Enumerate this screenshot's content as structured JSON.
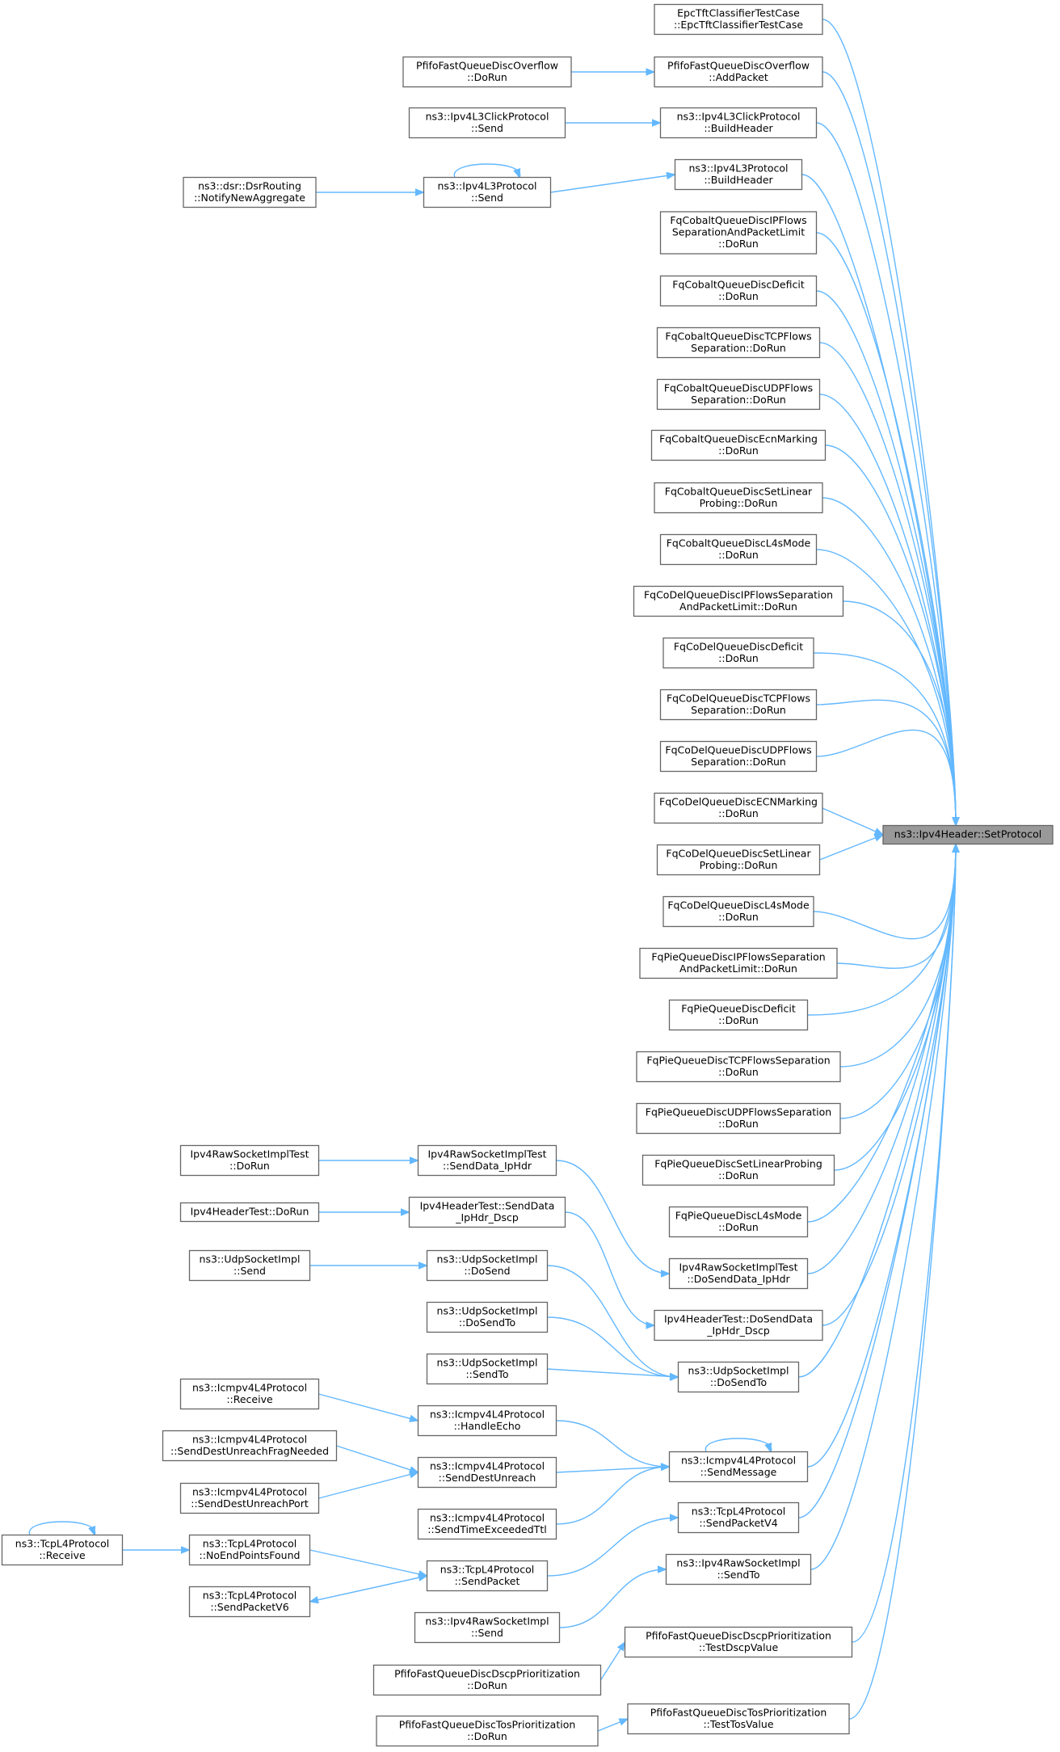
{
  "target": {
    "id": "target",
    "lines": [
      "ns3::Ipv4Header::SetProtocol"
    ]
  },
  "nodes": [
    {
      "id": "a1",
      "lines": [
        "EpcTftClassifierTestCase",
        "::EpcTftClassifierTestCase"
      ]
    },
    {
      "id": "a2",
      "lines": [
        "PfifoFastQueueDiscOverflow",
        "::AddPacket"
      ]
    },
    {
      "id": "a3",
      "lines": [
        "ns3::Ipv4L3ClickProtocol",
        "::BuildHeader"
      ]
    },
    {
      "id": "a4",
      "lines": [
        "ns3::Ipv4L3Protocol",
        "::BuildHeader"
      ]
    },
    {
      "id": "a5",
      "lines": [
        "FqCobaltQueueDiscIPFlows",
        "SeparationAndPacketLimit",
        "::DoRun"
      ]
    },
    {
      "id": "a6",
      "lines": [
        "FqCobaltQueueDiscDeficit",
        "::DoRun"
      ]
    },
    {
      "id": "a7",
      "lines": [
        "FqCobaltQueueDiscTCPFlows",
        "Separation::DoRun"
      ]
    },
    {
      "id": "a8",
      "lines": [
        "FqCobaltQueueDiscUDPFlows",
        "Separation::DoRun"
      ]
    },
    {
      "id": "a9",
      "lines": [
        "FqCobaltQueueDiscEcnMarking",
        "::DoRun"
      ]
    },
    {
      "id": "a10",
      "lines": [
        "FqCobaltQueueDiscSetLinear",
        "Probing::DoRun"
      ]
    },
    {
      "id": "a11",
      "lines": [
        "FqCobaltQueueDiscL4sMode",
        "::DoRun"
      ]
    },
    {
      "id": "a12",
      "lines": [
        "FqCoDelQueueDiscIPFlowsSeparation",
        "AndPacketLimit::DoRun"
      ]
    },
    {
      "id": "a13",
      "lines": [
        "FqCoDelQueueDiscDeficit",
        "::DoRun"
      ]
    },
    {
      "id": "a14",
      "lines": [
        "FqCoDelQueueDiscTCPFlows",
        "Separation::DoRun"
      ]
    },
    {
      "id": "a15",
      "lines": [
        "FqCoDelQueueDiscUDPFlows",
        "Separation::DoRun"
      ]
    },
    {
      "id": "a16",
      "lines": [
        "FqCoDelQueueDiscECNMarking",
        "::DoRun"
      ]
    },
    {
      "id": "a17",
      "lines": [
        "FqCoDelQueueDiscSetLinear",
        "Probing::DoRun"
      ]
    },
    {
      "id": "a18",
      "lines": [
        "FqCoDelQueueDiscL4sMode",
        "::DoRun"
      ]
    },
    {
      "id": "a19",
      "lines": [
        "FqPieQueueDiscIPFlowsSeparation",
        "AndPacketLimit::DoRun"
      ]
    },
    {
      "id": "a20",
      "lines": [
        "FqPieQueueDiscDeficit",
        "::DoRun"
      ]
    },
    {
      "id": "a21",
      "lines": [
        "FqPieQueueDiscTCPFlowsSeparation",
        "::DoRun"
      ]
    },
    {
      "id": "a22",
      "lines": [
        "FqPieQueueDiscUDPFlowsSeparation",
        "::DoRun"
      ]
    },
    {
      "id": "a23",
      "lines": [
        "FqPieQueueDiscSetLinearProbing",
        "::DoRun"
      ]
    },
    {
      "id": "a24",
      "lines": [
        "FqPieQueueDiscL4sMode",
        "::DoRun"
      ]
    },
    {
      "id": "a25",
      "lines": [
        "Ipv4RawSocketImplTest",
        "::DoSendData_IpHdr"
      ]
    },
    {
      "id": "a26",
      "lines": [
        "Ipv4HeaderTest::DoSendData",
        "_IpHdr_Dscp"
      ]
    },
    {
      "id": "a27",
      "lines": [
        "ns3::UdpSocketImpl",
        "::DoSendTo"
      ]
    },
    {
      "id": "a28",
      "lines": [
        "ns3::Icmpv4L4Protocol",
        "::SendMessage"
      ]
    },
    {
      "id": "a29",
      "lines": [
        "ns3::TcpL4Protocol",
        "::SendPacketV4"
      ]
    },
    {
      "id": "a30",
      "lines": [
        "ns3::Ipv4RawSocketImpl",
        "::SendTo"
      ]
    },
    {
      "id": "a31",
      "lines": [
        "PfifoFastQueueDiscDscpPrioritization",
        "::TestDscpValue"
      ]
    },
    {
      "id": "a32",
      "lines": [
        "PfifoFastQueueDiscTosPrioritization",
        "::TestTosValue"
      ]
    },
    {
      "id": "b1",
      "lines": [
        "PfifoFastQueueDiscOverflow",
        "::DoRun"
      ]
    },
    {
      "id": "b2",
      "lines": [
        "ns3::Ipv4L3ClickProtocol",
        "::Send"
      ]
    },
    {
      "id": "b3",
      "lines": [
        "ns3::Ipv4L3Protocol",
        "::Send"
      ]
    },
    {
      "id": "b4",
      "lines": [
        "Ipv4RawSocketImplTest",
        "::SendData_IpHdr"
      ]
    },
    {
      "id": "b5",
      "lines": [
        "Ipv4HeaderTest::SendData",
        "_IpHdr_Dscp"
      ]
    },
    {
      "id": "b6",
      "lines": [
        "ns3::UdpSocketImpl",
        "::DoSend"
      ]
    },
    {
      "id": "b7",
      "lines": [
        "ns3::UdpSocketImpl",
        "::DoSendTo"
      ]
    },
    {
      "id": "b8",
      "lines": [
        "ns3::UdpSocketImpl",
        "::SendTo"
      ]
    },
    {
      "id": "b9",
      "lines": [
        "ns3::Icmpv4L4Protocol",
        "::HandleEcho"
      ]
    },
    {
      "id": "b10",
      "lines": [
        "ns3::Icmpv4L4Protocol",
        "::SendDestUnreach"
      ]
    },
    {
      "id": "b11",
      "lines": [
        "ns3::Icmpv4L4Protocol",
        "::SendTimeExceededTtl"
      ]
    },
    {
      "id": "b12",
      "lines": [
        "ns3::TcpL4Protocol",
        "::SendPacket"
      ]
    },
    {
      "id": "b13",
      "lines": [
        "ns3::Ipv4RawSocketImpl",
        "::Send"
      ]
    },
    {
      "id": "b14",
      "lines": [
        "PfifoFastQueueDiscDscpPrioritization",
        "::DoRun"
      ]
    },
    {
      "id": "b15",
      "lines": [
        "PfifoFastQueueDiscTosPrioritization",
        "::DoRun"
      ]
    },
    {
      "id": "c1",
      "lines": [
        "ns3::dsr::DsrRouting",
        "::NotifyNewAggregate"
      ]
    },
    {
      "id": "c2",
      "lines": [
        "Ipv4RawSocketImplTest",
        "::DoRun"
      ]
    },
    {
      "id": "c3",
      "lines": [
        "Ipv4HeaderTest::DoRun"
      ]
    },
    {
      "id": "c4",
      "lines": [
        "ns3::UdpSocketImpl",
        "::Send"
      ]
    },
    {
      "id": "c5",
      "lines": [
        "ns3::Icmpv4L4Protocol",
        "::Receive"
      ]
    },
    {
      "id": "c6",
      "lines": [
        "ns3::Icmpv4L4Protocol",
        "::SendDestUnreachFragNeeded"
      ]
    },
    {
      "id": "c7",
      "lines": [
        "ns3::Icmpv4L4Protocol",
        "::SendDestUnreachPort"
      ]
    },
    {
      "id": "c8",
      "lines": [
        "ns3::TcpL4Protocol",
        "::NoEndPointsFound"
      ]
    },
    {
      "id": "c9",
      "lines": [
        "ns3::TcpL4Protocol",
        "::SendPacketV6"
      ]
    },
    {
      "id": "d1",
      "lines": [
        "ns3::TcpL4Protocol",
        "::Receive"
      ]
    }
  ],
  "colors": {
    "edge": "#63b8ff",
    "node_border": "#666666",
    "target_fill": "#999999",
    "node_fill": "#ffffff"
  }
}
